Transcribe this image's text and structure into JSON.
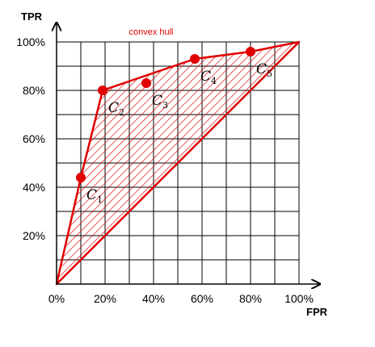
{
  "chart_data": {
    "type": "scatter",
    "xlabel": "FPR",
    "ylabel": "TPR",
    "annotation": "convex hull",
    "xlim": [
      0,
      100
    ],
    "ylim": [
      0,
      100
    ],
    "x_ticks": [
      "0%",
      "20%",
      "40%",
      "60%",
      "80%",
      "100%"
    ],
    "y_ticks": [
      "",
      "20%",
      "40%",
      "60%",
      "80%",
      "100%"
    ],
    "grid": true,
    "colors": {
      "hull": "#e00000",
      "points": "#e00000",
      "grid": "#000000"
    },
    "points": [
      {
        "name": "C",
        "sub": "1",
        "x": 10,
        "y": 44
      },
      {
        "name": "C",
        "sub": "2",
        "x": 19,
        "y": 80
      },
      {
        "name": "C",
        "sub": "3",
        "x": 37,
        "y": 83
      },
      {
        "name": "C",
        "sub": "4",
        "x": 57,
        "y": 93
      },
      {
        "name": "C",
        "sub": "5",
        "x": 80,
        "y": 96
      }
    ],
    "hull": [
      {
        "x": 0,
        "y": 0
      },
      {
        "x": 10,
        "y": 44
      },
      {
        "x": 19,
        "y": 80
      },
      {
        "x": 57,
        "y": 93
      },
      {
        "x": 80,
        "y": 96
      },
      {
        "x": 100,
        "y": 100
      }
    ]
  }
}
